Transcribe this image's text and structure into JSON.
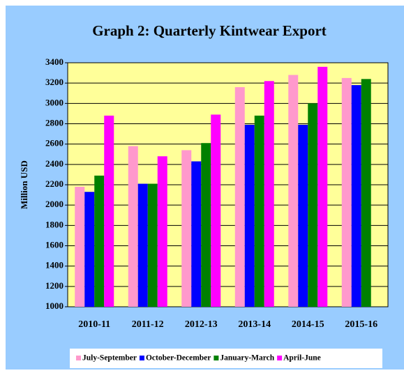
{
  "chart_data": {
    "type": "bar",
    "title": "Graph 2: Quarterly Kintwear Export",
    "ylabel": "Million USD",
    "categories": [
      "2010-11",
      "2011-12",
      "2012-13",
      "2013-14",
      "2014-15",
      "2015-16"
    ],
    "series": [
      {
        "name": "July-September",
        "color": "#ff99cc",
        "values": [
          2180,
          2580,
          2540,
          3160,
          3280,
          3250
        ]
      },
      {
        "name": "October-December",
        "color": "#0000ff",
        "values": [
          2130,
          2210,
          2430,
          2790,
          2790,
          3180
        ]
      },
      {
        "name": "January-March",
        "color": "#008000",
        "values": [
          2290,
          2210,
          2610,
          2880,
          3000,
          3240
        ]
      },
      {
        "name": "April-June",
        "color": "#ff00ff",
        "values": [
          2880,
          2480,
          2890,
          3220,
          3360,
          null
        ]
      }
    ],
    "ylim": [
      1000,
      3400
    ],
    "yticks": [
      1000,
      1200,
      1400,
      1600,
      1800,
      2000,
      2200,
      2400,
      2600,
      2800,
      3000,
      3200,
      3400
    ],
    "grid": true,
    "legend": "bottom"
  }
}
